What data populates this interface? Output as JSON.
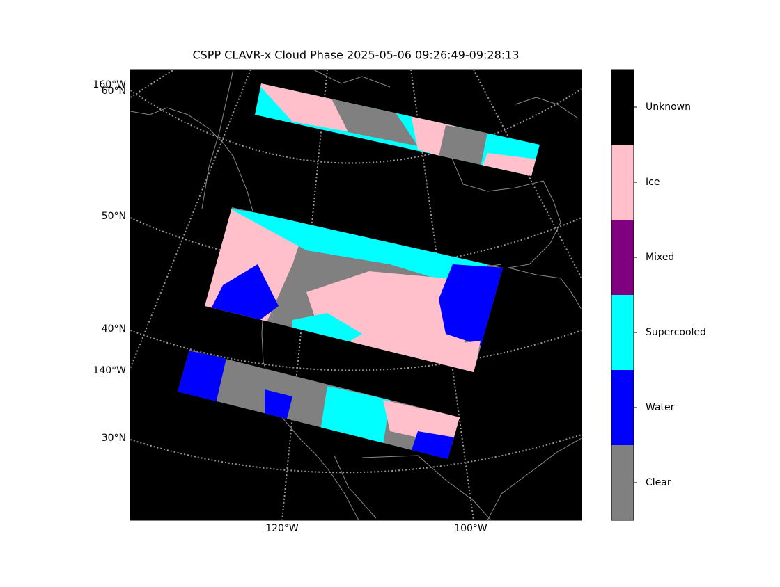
{
  "title": "CSPP CLAVR-x Cloud Phase 2025-05-06 09:26:49-09:28:13",
  "latitude_labels": [
    "60°N",
    "50°N",
    "40°N",
    "30°N"
  ],
  "longitude_labels": [
    "160°W",
    "140°W",
    "120°W",
    "100°W"
  ],
  "colorbar": {
    "categories": [
      {
        "label": "Clear",
        "color": "#808080"
      },
      {
        "label": "Water",
        "color": "#0000ff"
      },
      {
        "label": "Supercooled",
        "color": "#00ffff"
      },
      {
        "label": "Mixed",
        "color": "#800080"
      },
      {
        "label": "Ice",
        "color": "#ffc0cb"
      },
      {
        "label": "Unknown",
        "color": "#000000"
      }
    ]
  }
}
